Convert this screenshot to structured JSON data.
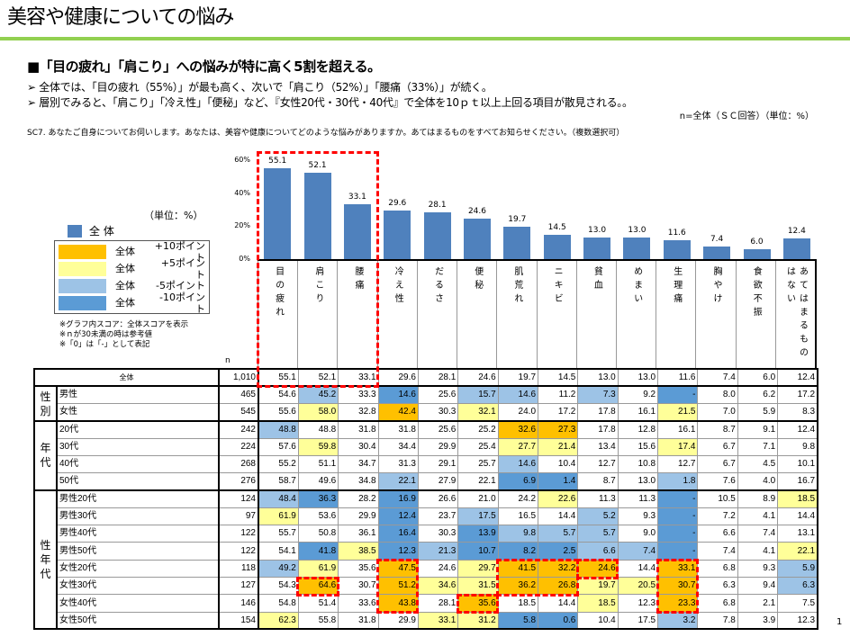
{
  "title": "美容や健康についての悩み",
  "headline": "■「目の疲れ」「肩こり」への悩みが特に高く5割を超える。",
  "bullets": [
    "➢  全体では、「目の疲れ（55%）」が最も高く、次いで「肩こり（52%）」「腰痛（33%）」が続く。",
    "➢  層別でみると、「肩こり」「冷え性」「便秘」など、『女性20代・30代・40代』で全体を10ｐｔ以上上回る項目が散見される。。"
  ],
  "n_note": "n=全体（ＳＣ回答）（単位：%）",
  "question": "SC7.  あなたご自身についてお伺いします。あなたは、美容や健康についてどのような悩みがありますか。あてはまるものをすべてお知らせください。（複数選択可）",
  "unit": "（単位：%）",
  "legend": {
    "total": "全 体",
    "items": [
      {
        "a": "全体",
        "b": "+10ポイント",
        "color": "#FFC000"
      },
      {
        "a": "全体",
        "b": "+5ポイント",
        "color": "#FFFF99"
      },
      {
        "a": "全体",
        "b": "-5ポイント",
        "color": "#9DC3E6"
      },
      {
        "a": "全体",
        "b": "-10ポイント",
        "color": "#5B9BD5"
      }
    ]
  },
  "notes": [
    "※グラフ内スコア：全体スコアを表示",
    "※ｎが30未満の時は参考値",
    "※「0」は「-」として表記"
  ],
  "n_label": "n",
  "page_number": "1",
  "chart_data": {
    "type": "bar",
    "categories": [
      "目の疲れ",
      "肩こり",
      "腰痛",
      "冷え性",
      "だるさ",
      "便秘",
      "肌荒れ",
      "ニキビ",
      "貧血",
      "めまい",
      "生理痛",
      "胸やけ",
      "食欲不振",
      "あてはまるものはない"
    ],
    "series": [
      {
        "name": "全 体",
        "values": [
          55.1,
          52.1,
          33.1,
          29.6,
          28.1,
          24.6,
          19.7,
          14.5,
          13.0,
          13.0,
          11.6,
          7.4,
          6.0,
          12.4
        ]
      }
    ],
    "value_labels": [
      "55.1",
      "52.1",
      "33.1",
      "29.6",
      "28.1",
      "24.6",
      "19.7",
      "14.5",
      "13.0",
      "13.0",
      "11.6",
      "7.4",
      "6.0",
      "12.4"
    ],
    "yticks": [
      "0%",
      "20%",
      "40%",
      "60%"
    ],
    "ylim": [
      0,
      60
    ],
    "color": "#4F81BD"
  },
  "table": {
    "groups": [
      {
        "label": "",
        "rows": [
          {
            "label": "全体",
            "n": "1,010",
            "values": [
              "55.1",
              "52.1",
              "33.1",
              "29.6",
              "28.1",
              "24.6",
              "19.7",
              "14.5",
              "13.0",
              "13.0",
              "11.6",
              "7.4",
              "6.0",
              "12.4"
            ],
            "hl": "--------------"
          }
        ]
      },
      {
        "label": "性別",
        "rows": [
          {
            "label": "男性",
            "n": "465",
            "values": [
              "54.6",
              "45.2",
              "33.3",
              "14.6",
              "25.6",
              "15.7",
              "14.6",
              "11.2",
              "7.3",
              "9.2",
              "-",
              "8.0",
              "6.2",
              "17.2"
            ],
            "hl": "-L-B-LL-L-B---"
          },
          {
            "label": "女性",
            "n": "545",
            "values": [
              "55.6",
              "58.0",
              "32.8",
              "42.4",
              "30.3",
              "32.1",
              "24.0",
              "17.2",
              "17.8",
              "16.1",
              "21.5",
              "7.0",
              "5.9",
              "8.3"
            ],
            "hl": "-Y-O-Y----Y---"
          }
        ]
      },
      {
        "label": "年代",
        "rows": [
          {
            "label": "20代",
            "n": "242",
            "values": [
              "48.8",
              "48.8",
              "31.8",
              "31.8",
              "25.6",
              "25.2",
              "32.6",
              "27.3",
              "17.8",
              "12.8",
              "16.1",
              "8.7",
              "9.1",
              "12.4"
            ],
            "hl": "L-----OO------"
          },
          {
            "label": "30代",
            "n": "224",
            "values": [
              "57.6",
              "59.8",
              "30.4",
              "34.4",
              "29.9",
              "25.4",
              "27.7",
              "21.4",
              "13.4",
              "15.6",
              "17.4",
              "6.7",
              "7.1",
              "9.8"
            ],
            "hl": "-Y----YY--Y---"
          },
          {
            "label": "40代",
            "n": "268",
            "values": [
              "55.2",
              "51.1",
              "34.7",
              "31.3",
              "29.1",
              "25.7",
              "14.6",
              "10.4",
              "12.7",
              "10.8",
              "12.7",
              "6.7",
              "4.5",
              "10.1"
            ],
            "hl": "------L-------"
          },
          {
            "label": "50代",
            "n": "276",
            "values": [
              "58.7",
              "49.6",
              "34.8",
              "22.1",
              "27.9",
              "22.1",
              "6.9",
              "1.4",
              "8.7",
              "13.0",
              "1.8",
              "7.6",
              "4.0",
              "16.7"
            ],
            "hl": "---L--BB--L---"
          }
        ]
      },
      {
        "label": "性年代",
        "rows": [
          {
            "label": "男性20代",
            "n": "124",
            "values": [
              "48.4",
              "36.3",
              "28.2",
              "16.9",
              "26.6",
              "21.0",
              "24.2",
              "22.6",
              "11.3",
              "11.3",
              "-",
              "10.5",
              "8.9",
              "18.5"
            ],
            "hl": "LB-B---Y--B--Y"
          },
          {
            "label": "男性30代",
            "n": "97",
            "values": [
              "61.9",
              "53.6",
              "29.9",
              "12.4",
              "23.7",
              "17.5",
              "16.5",
              "14.4",
              "5.2",
              "9.3",
              "-",
              "7.2",
              "4.1",
              "14.4"
            ],
            "hl": "Y--B-L--L-B---"
          },
          {
            "label": "男性40代",
            "n": "122",
            "values": [
              "55.7",
              "50.8",
              "36.1",
              "16.4",
              "30.3",
              "13.9",
              "9.8",
              "5.7",
              "5.7",
              "9.0",
              "-",
              "6.6",
              "7.4",
              "13.1"
            ],
            "hl": "---B-BLLL-B---"
          },
          {
            "label": "男性50代",
            "n": "122",
            "values": [
              "54.1",
              "41.8",
              "38.5",
              "12.3",
              "21.3",
              "10.7",
              "8.2",
              "2.5",
              "6.6",
              "7.4",
              "-",
              "7.4",
              "4.1",
              "22.1"
            ],
            "hl": "-BYBLBBBLLB--Y"
          },
          {
            "label": "女性20代",
            "n": "118",
            "values": [
              "49.2",
              "61.9",
              "35.6",
              "47.5",
              "24.6",
              "29.7",
              "41.5",
              "32.2",
              "24.6",
              "14.4",
              "33.1",
              "6.8",
              "9.3",
              "5.9"
            ],
            "hl": "LY-O-YOOO-O--L"
          },
          {
            "label": "女性30代",
            "n": "127",
            "values": [
              "54.3",
              "64.6",
              "30.7",
              "51.2",
              "34.6",
              "31.5",
              "36.2",
              "26.8",
              "19.7",
              "20.5",
              "30.7",
              "6.3",
              "9.4",
              "6.3"
            ],
            "hl": "-O-OYYOOYYO--L"
          },
          {
            "label": "女性40代",
            "n": "146",
            "values": [
              "54.8",
              "51.4",
              "33.6",
              "43.8",
              "28.1",
              "35.6",
              "18.5",
              "14.4",
              "18.5",
              "12.3",
              "23.3",
              "6.8",
              "2.1",
              "7.5"
            ],
            "hl": "---O-O--Y-O---"
          },
          {
            "label": "女性50代",
            "n": "154",
            "values": [
              "62.3",
              "55.8",
              "31.8",
              "29.9",
              "33.1",
              "31.2",
              "5.8",
              "0.6",
              "10.4",
              "17.5",
              "3.2",
              "7.8",
              "3.9",
              "12.3"
            ],
            "hl": "Y---YYBB--L---"
          }
        ]
      }
    ]
  }
}
